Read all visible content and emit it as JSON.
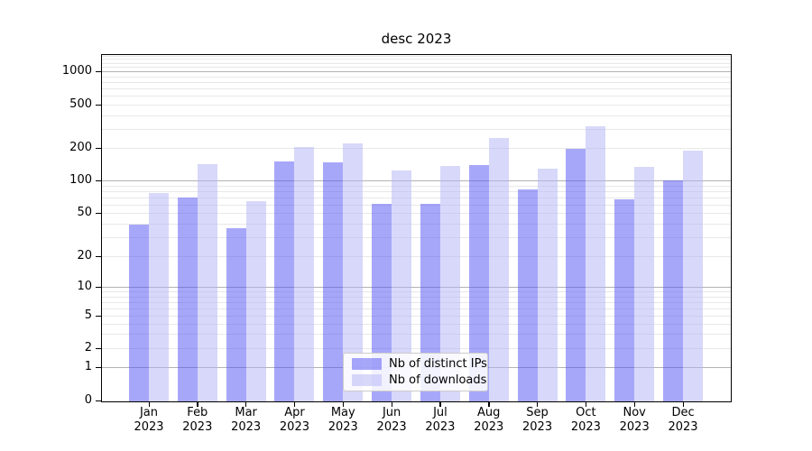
{
  "chart_data": {
    "type": "bar",
    "title": "desc 2023",
    "x_axis": {
      "months": [
        "Jan",
        "Feb",
        "Mar",
        "Apr",
        "May",
        "Jun",
        "Jul",
        "Aug",
        "Sep",
        "Oct",
        "Nov",
        "Dec"
      ],
      "year_line": "2023"
    },
    "y_axis": {
      "scale": "symlog-like",
      "tick_values": [
        0,
        1,
        2,
        5,
        10,
        20,
        50,
        100,
        200,
        500,
        1000
      ],
      "tick_labels": [
        "0",
        "1",
        "2",
        "5",
        "10",
        "20",
        "50",
        "100",
        "200",
        "500",
        "1000"
      ],
      "minor_gridline_values": [
        2,
        3,
        4,
        5,
        6,
        7,
        8,
        9,
        20,
        30,
        40,
        50,
        60,
        70,
        80,
        90,
        200,
        300,
        400,
        500,
        600,
        700,
        800,
        900,
        1100,
        1200,
        1300,
        1400
      ],
      "major_gridline_values": [
        1,
        10,
        100,
        1000
      ]
    },
    "series": [
      {
        "name": "Nb of distinct IPs",
        "fill": "rgba(80,80,245,0.5)",
        "values": [
          39,
          69,
          36,
          150,
          149,
          61,
          61,
          140,
          83,
          196,
          67,
          101
        ]
      },
      {
        "name": "Nb of downloads",
        "fill": "rgba(177,177,245,0.5)",
        "values": [
          77,
          143,
          64,
          204,
          221,
          124,
          138,
          250,
          130,
          320,
          134,
          189
        ]
      }
    ],
    "legend": {
      "position": "lower center"
    },
    "colors": {
      "major_grid": "#b3b3b3",
      "minor_grid": "#e8e8e8",
      "spine": "#000000",
      "text": "#000000",
      "legend_border": "#cccccc"
    }
  }
}
